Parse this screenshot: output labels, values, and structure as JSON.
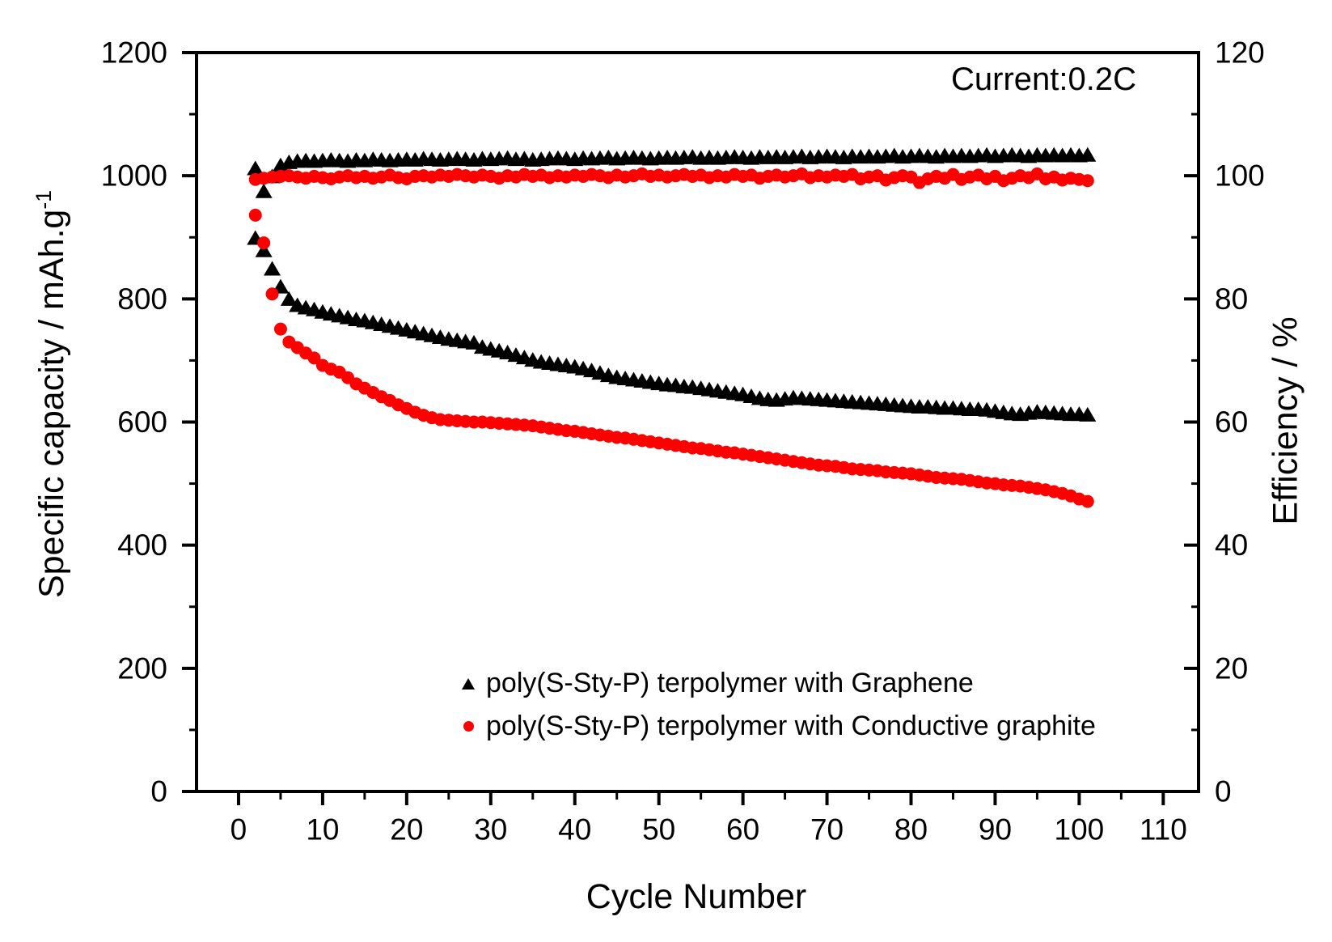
{
  "chart_data": {
    "type": "scatter",
    "annotation": "Current:0.2C",
    "x_title": "Cycle Number",
    "y_left_title_main": "Specific capacity / mAh.g",
    "y_left_title_sup": "-1",
    "y_right_title": "Efficiency / %",
    "axes": {
      "x": {
        "min": -5,
        "max": 114.2,
        "major_ticks": [
          0,
          10,
          20,
          30,
          40,
          50,
          60,
          70,
          80,
          90,
          100,
          110
        ],
        "minor_ticks": [
          5,
          15,
          25,
          35,
          45,
          55,
          65,
          75,
          85,
          95,
          105
        ]
      },
      "y_left": {
        "min": 0,
        "max": 1200,
        "major_ticks": [
          0,
          200,
          400,
          600,
          800,
          1000,
          1200
        ],
        "minor_ticks": [
          100,
          300,
          500,
          700,
          900,
          1100
        ]
      },
      "y_right": {
        "min": 0,
        "max": 120,
        "major_ticks": [
          0,
          20,
          40,
          60,
          80,
          100,
          120
        ],
        "minor_ticks": [
          10,
          30,
          50,
          70,
          90,
          110
        ]
      }
    },
    "grid": false,
    "legend_position": "inside-bottom-center",
    "legend": [
      {
        "label": "poly(S-Sty-P) terpolymer with Graphene",
        "marker": "triangle",
        "color": "#000000"
      },
      {
        "label": "poly(S-Sty-P) terpolymer with Conductive graphite",
        "marker": "circle",
        "color": "#ff0000"
      }
    ],
    "cycles": [
      2,
      3,
      4,
      5,
      6,
      7,
      8,
      9,
      10,
      11,
      12,
      13,
      14,
      15,
      16,
      17,
      18,
      19,
      20,
      21,
      22,
      23,
      24,
      25,
      26,
      27,
      28,
      29,
      30,
      31,
      32,
      33,
      34,
      35,
      36,
      37,
      38,
      39,
      40,
      41,
      42,
      43,
      44,
      45,
      46,
      47,
      48,
      49,
      50,
      51,
      52,
      53,
      54,
      55,
      56,
      57,
      58,
      59,
      60,
      61,
      62,
      63,
      64,
      65,
      66,
      67,
      68,
      69,
      70,
      71,
      72,
      73,
      74,
      75,
      76,
      77,
      78,
      79,
      80,
      81,
      82,
      83,
      84,
      85,
      86,
      87,
      88,
      89,
      90,
      91,
      92,
      93,
      94,
      95,
      96,
      97,
      98,
      99,
      100,
      101
    ],
    "series": [
      {
        "name": "Graphene specific capacity",
        "axis": "left",
        "marker": "triangle",
        "color": "#000000",
        "unit": "mAh.g-1",
        "values": [
          899,
          879,
          849,
          820,
          800,
          790,
          786,
          783,
          779,
          776,
          773,
          770,
          767,
          765,
          762,
          759,
          756,
          753,
          750,
          747,
          744,
          741,
          738,
          735,
          733,
          731,
          729,
          722,
          719,
          716,
          713,
          709,
          705,
          701,
          698,
          696,
          694,
          692,
          690,
          687,
          684,
          680,
          676,
          673,
          671,
          669,
          667,
          665,
          663,
          661,
          660,
          658,
          657,
          655,
          653,
          651,
          649,
          647,
          645,
          642,
          639,
          637,
          636,
          638,
          640,
          639,
          638,
          637,
          636,
          635,
          634,
          633,
          632,
          631,
          630,
          629,
          628,
          627,
          626,
          625,
          625,
          624,
          623,
          623,
          622,
          621,
          621,
          620,
          618,
          616,
          614,
          613,
          615,
          617,
          616,
          615,
          614,
          613,
          613,
          612
        ]
      },
      {
        "name": "Graphene efficiency",
        "axis": "right",
        "marker": "triangle",
        "color": "#000000",
        "unit": "%",
        "values": [
          101.2,
          97.5,
          99.9,
          101.7,
          102.2,
          102.4,
          102.5,
          102.4,
          102.5,
          102.6,
          102.5,
          102.4,
          102.6,
          102.5,
          102.7,
          102.6,
          102.5,
          102.6,
          102.7,
          102.6,
          102.8,
          102.7,
          102.6,
          102.7,
          102.8,
          102.7,
          102.6,
          102.8,
          102.7,
          102.8,
          102.9,
          102.7,
          102.8,
          102.6,
          102.7,
          102.8,
          102.9,
          102.8,
          102.7,
          102.9,
          102.8,
          102.9,
          103.0,
          102.8,
          102.9,
          103.0,
          102.9,
          102.8,
          102.9,
          103.0,
          102.9,
          103.0,
          103.1,
          102.9,
          103.0,
          102.9,
          103.0,
          103.1,
          103.0,
          102.9,
          103.1,
          103.0,
          103.1,
          103.0,
          103.1,
          103.2,
          103.0,
          103.1,
          103.2,
          103.1,
          103.0,
          103.2,
          103.1,
          103.2,
          103.1,
          103.2,
          103.3,
          103.1,
          103.2,
          103.3,
          103.2,
          103.1,
          103.3,
          103.2,
          103.3,
          103.2,
          103.3,
          103.4,
          103.2,
          103.3,
          103.4,
          103.3,
          103.2,
          103.4,
          103.3,
          103.4,
          103.3,
          103.4,
          103.3,
          103.4
        ]
      },
      {
        "name": "Conductive graphite specific capacity",
        "axis": "left",
        "marker": "circle",
        "color": "#ff0000",
        "unit": "mAh.g-1",
        "values": [
          936,
          891,
          808,
          751,
          730,
          721,
          712,
          704,
          692,
          686,
          681,
          672,
          662,
          655,
          648,
          641,
          635,
          628,
          622,
          616,
          611,
          607,
          604,
          603,
          602,
          601,
          600,
          600,
          599,
          598,
          597,
          596,
          595,
          594,
          592,
          590,
          588,
          586,
          585,
          583,
          581,
          579,
          577,
          575,
          574,
          572,
          570,
          568,
          566,
          564,
          562,
          560,
          558,
          557,
          555,
          553,
          551,
          550,
          548,
          546,
          544,
          542,
          540,
          538,
          536,
          534,
          532,
          530,
          529,
          528,
          526,
          524,
          523,
          522,
          521,
          519,
          518,
          517,
          516,
          514,
          512,
          510,
          509,
          508,
          507,
          505,
          503,
          501,
          500,
          498,
          497,
          496,
          494,
          492,
          490,
          487,
          484,
          480,
          475,
          471
        ]
      },
      {
        "name": "Conductive graphite efficiency",
        "axis": "right",
        "marker": "circle",
        "color": "#ff0000",
        "unit": "%",
        "values": [
          99.4,
          99.6,
          99.8,
          99.9,
          100.0,
          99.8,
          99.6,
          99.9,
          99.7,
          99.5,
          99.8,
          100.0,
          99.7,
          99.9,
          99.6,
          99.8,
          100.1,
          99.7,
          99.5,
          99.9,
          100.0,
          99.8,
          100.1,
          99.9,
          100.2,
          100.0,
          99.8,
          100.1,
          99.9,
          99.6,
          100.0,
          99.8,
          100.2,
          99.9,
          100.1,
          99.7,
          100.0,
          99.8,
          100.1,
          99.9,
          100.2,
          100.0,
          99.7,
          100.1,
          99.8,
          100.0,
          100.3,
          99.9,
          100.1,
          99.8,
          100.0,
          100.2,
          99.9,
          100.1,
          99.7,
          100.0,
          99.8,
          100.2,
          99.9,
          100.1,
          99.6,
          99.9,
          100.1,
          99.8,
          100.0,
          100.3,
          99.7,
          100.0,
          99.8,
          100.1,
          99.9,
          100.2,
          99.5,
          99.8,
          100.0,
          99.3,
          99.7,
          100.0,
          99.8,
          98.9,
          99.5,
          99.9,
          99.6,
          100.2,
          99.4,
          99.8,
          100.1,
          99.5,
          99.9,
          99.2,
          99.6,
          100.0,
          99.7,
          100.3,
          99.5,
          99.8,
          99.3,
          99.6,
          99.4,
          99.2
        ]
      }
    ]
  }
}
